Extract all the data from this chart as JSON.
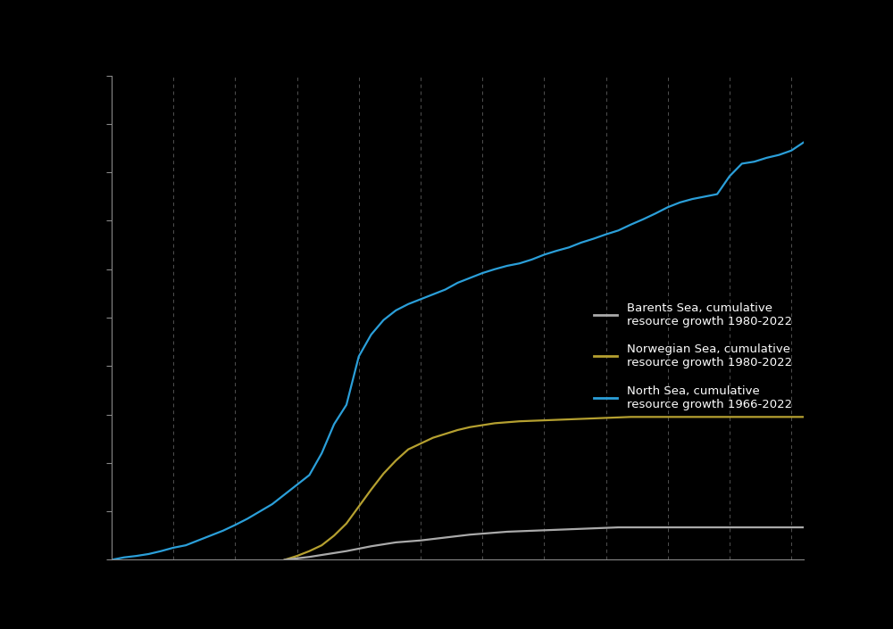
{
  "background_color": "#000000",
  "plot_bg_color": "#000000",
  "text_color": "#ffffff",
  "grid_color": "#666666",
  "axis_color": "#888888",
  "tick_color": "#888888",
  "north_sea_color": "#2b9fd9",
  "norwegian_sea_color": "#b5a030",
  "barents_sea_color": "#aaaaaa",
  "legend_labels": [
    "Barents Sea, cumulative\nresource growth 1980-2022",
    "Norwegian Sea, cumulative\nresource growth 1980-2022",
    "North Sea, cumulative\nresource growth 1966-2022"
  ],
  "xlim": [
    1966,
    2022
  ],
  "ylim": [
    0,
    1.0
  ],
  "ytick_count": 11,
  "xtick_years": [
    1966,
    1971,
    1976,
    1981,
    1986,
    1991,
    1996,
    2001,
    2006,
    2011,
    2016,
    2021
  ],
  "north_sea_x": [
    1966,
    1967,
    1968,
    1969,
    1970,
    1971,
    1972,
    1973,
    1974,
    1975,
    1976,
    1977,
    1978,
    1979,
    1980,
    1981,
    1982,
    1983,
    1984,
    1985,
    1986,
    1987,
    1988,
    1989,
    1990,
    1991,
    1992,
    1993,
    1994,
    1995,
    1996,
    1997,
    1998,
    1999,
    2000,
    2001,
    2002,
    2003,
    2004,
    2005,
    2006,
    2007,
    2008,
    2009,
    2010,
    2011,
    2012,
    2013,
    2014,
    2015,
    2016,
    2017,
    2018,
    2019,
    2020,
    2021,
    2022
  ],
  "north_sea_y": [
    0.0,
    0.005,
    0.008,
    0.012,
    0.018,
    0.025,
    0.03,
    0.04,
    0.05,
    0.06,
    0.072,
    0.085,
    0.1,
    0.115,
    0.135,
    0.155,
    0.175,
    0.22,
    0.28,
    0.32,
    0.42,
    0.465,
    0.495,
    0.515,
    0.528,
    0.538,
    0.548,
    0.558,
    0.572,
    0.582,
    0.592,
    0.6,
    0.607,
    0.612,
    0.62,
    0.63,
    0.638,
    0.645,
    0.655,
    0.663,
    0.672,
    0.68,
    0.692,
    0.703,
    0.715,
    0.728,
    0.738,
    0.745,
    0.75,
    0.755,
    0.792,
    0.818,
    0.822,
    0.83,
    0.836,
    0.845,
    0.862
  ],
  "norwegian_sea_x": [
    1980,
    1981,
    1982,
    1983,
    1984,
    1985,
    1986,
    1987,
    1988,
    1989,
    1990,
    1991,
    1992,
    1993,
    1994,
    1995,
    1996,
    1997,
    1998,
    1999,
    2000,
    2001,
    2002,
    2003,
    2004,
    2005,
    2006,
    2007,
    2008,
    2009,
    2010,
    2011,
    2012,
    2013,
    2014,
    2015,
    2016,
    2017,
    2018,
    2019,
    2020,
    2021,
    2022
  ],
  "norwegian_sea_y": [
    0.0,
    0.008,
    0.018,
    0.03,
    0.05,
    0.075,
    0.11,
    0.145,
    0.178,
    0.205,
    0.228,
    0.24,
    0.252,
    0.26,
    0.268,
    0.274,
    0.278,
    0.282,
    0.284,
    0.286,
    0.287,
    0.288,
    0.289,
    0.29,
    0.291,
    0.292,
    0.293,
    0.294,
    0.295,
    0.295,
    0.295,
    0.295,
    0.295,
    0.295,
    0.295,
    0.295,
    0.295,
    0.295,
    0.295,
    0.295,
    0.295,
    0.295,
    0.295
  ],
  "barents_sea_x": [
    1980,
    1981,
    1982,
    1983,
    1984,
    1985,
    1986,
    1987,
    1988,
    1989,
    1990,
    1991,
    1992,
    1993,
    1994,
    1995,
    1996,
    1997,
    1998,
    1999,
    2000,
    2001,
    2002,
    2003,
    2004,
    2005,
    2006,
    2007,
    2008,
    2009,
    2010,
    2011,
    2012,
    2013,
    2014,
    2015,
    2016,
    2017,
    2018,
    2019,
    2020,
    2021,
    2022
  ],
  "barents_sea_y": [
    0.0,
    0.003,
    0.006,
    0.01,
    0.014,
    0.018,
    0.023,
    0.028,
    0.032,
    0.036,
    0.038,
    0.04,
    0.043,
    0.046,
    0.049,
    0.052,
    0.054,
    0.056,
    0.058,
    0.059,
    0.06,
    0.061,
    0.062,
    0.063,
    0.064,
    0.065,
    0.066,
    0.067,
    0.067,
    0.067,
    0.067,
    0.067,
    0.067,
    0.067,
    0.067,
    0.067,
    0.067,
    0.067,
    0.067,
    0.067,
    0.067,
    0.067,
    0.067
  ]
}
